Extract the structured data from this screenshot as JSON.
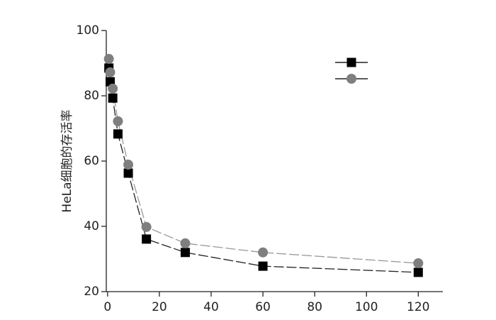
{
  "chart_data": {
    "type": "line",
    "y_label": "HeLa细胞的存活率",
    "x": [
      0.5,
      1,
      2,
      4,
      8,
      15,
      30,
      60,
      120
    ],
    "series": [
      {
        "color": "#000000",
        "line_color": "#222222",
        "marker": "square",
        "linestyle": "dashed",
        "values": [
          88.5,
          84.3,
          79.3,
          68.3,
          56.3,
          36.1,
          32,
          27.8,
          25.9
        ]
      },
      {
        "color": "#7f7f7f",
        "line_color": "#999999",
        "marker": "circle",
        "linestyle": "dashed",
        "values": [
          91.3,
          87.2,
          82.2,
          72.2,
          58.9,
          39.8,
          34.8,
          32,
          28.7
        ]
      }
    ],
    "xlim": [
      -0.5,
      129.5
    ],
    "xticks": [
      0,
      20,
      40,
      60,
      80,
      100,
      120
    ],
    "ylim": [
      20,
      100
    ],
    "yticks": [
      20,
      40,
      60,
      80,
      100
    ],
    "legend": "upper right"
  }
}
